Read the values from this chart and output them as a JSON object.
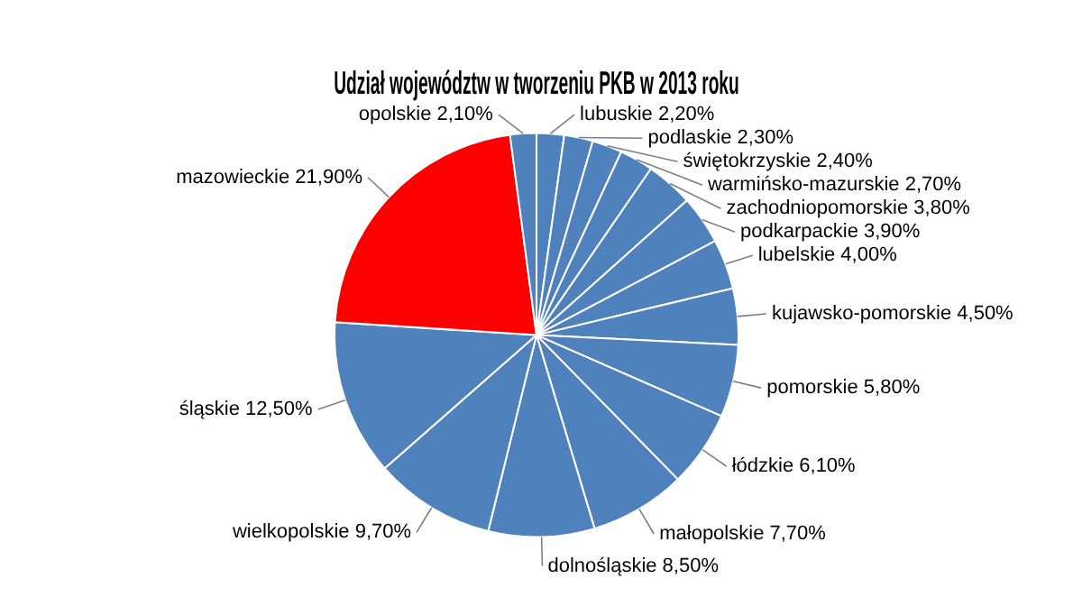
{
  "chart_data": {
    "type": "pie",
    "title": "Udział województw w tworzeniu PKB w 2013 roku",
    "categories": [
      "lubuskie",
      "podlaskie",
      "świętokrzyskie",
      "warmińsko-mazurskie",
      "zachodniopomorskie",
      "podkarpackie",
      "lubelskie",
      "kujawsko-pomorskie",
      "pomorskie",
      "łódzkie",
      "małopolskie",
      "dolnośląskie",
      "wielkopolskie",
      "śląskie",
      "mazowieckie",
      "opolskie"
    ],
    "values": [
      2.2,
      2.3,
      2.4,
      2.7,
      3.8,
      3.9,
      4.0,
      4.5,
      5.8,
      6.1,
      7.7,
      8.5,
      9.7,
      12.5,
      21.9,
      2.1
    ],
    "value_labels": [
      "2,20%",
      "2,30%",
      "2,40%",
      "2,70%",
      "3,80%",
      "3,90%",
      "4,00%",
      "4,50%",
      "5,80%",
      "6,10%",
      "7,70%",
      "8,50%",
      "9,70%",
      "12,50%",
      "21,90%",
      "2,10%"
    ],
    "colors": [
      "#4f81bd",
      "#4f81bd",
      "#4f81bd",
      "#4f81bd",
      "#4f81bd",
      "#4f81bd",
      "#4f81bd",
      "#4f81bd",
      "#4f81bd",
      "#4f81bd",
      "#4f81bd",
      "#4f81bd",
      "#4f81bd",
      "#4f81bd",
      "#ff0000",
      "#4f81bd"
    ],
    "legend": false
  }
}
